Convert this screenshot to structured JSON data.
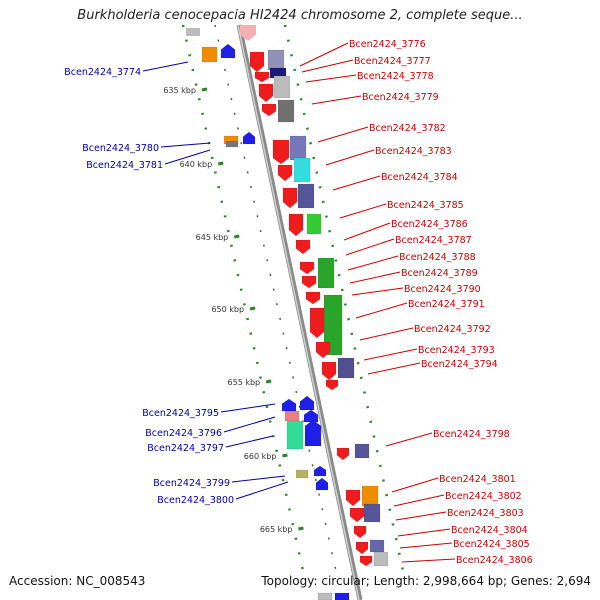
{
  "title": "Burkholderia cenocepacia HI2424 chromosome 2, complete seque...",
  "accession": "Accession: NC_008543",
  "topology": "Topology: circular; Length: 2,998,664 bp; Genes: 2,694",
  "scale_ticks": [
    "635 kbp",
    "640 kbp",
    "645 kbp",
    "650 kbp",
    "655 kbp",
    "660 kbp",
    "665 kbp"
  ],
  "genes_right": [
    "Bcen2424_3776",
    "Bcen2424_3777",
    "Bcen2424_3778",
    "Bcen2424_3779",
    "Bcen2424_3782",
    "Bcen2424_3783",
    "Bcen2424_3784",
    "Bcen2424_3785",
    "Bcen2424_3786",
    "Bcen2424_3787",
    "Bcen2424_3788",
    "Bcen2424_3789",
    "Bcen2424_3790",
    "Bcen2424_3791",
    "Bcen2424_3792",
    "Bcen2424_3793",
    "Bcen2424_3794",
    "Bcen2424_3798",
    "Bcen2424_3801",
    "Bcen2424_3802",
    "Bcen2424_3803",
    "Bcen2424_3804",
    "Bcen2424_3805",
    "Bcen2424_3806"
  ],
  "genes_left": [
    "Bcen2424_3774",
    "Bcen2424_3780",
    "Bcen2424_3781",
    "Bcen2424_3795",
    "Bcen2424_3796",
    "Bcen2424_3797",
    "Bcen2424_3799",
    "Bcen2424_3800"
  ],
  "colors": {
    "forward": "#ee1c1c",
    "reverse": "#1f1fe8",
    "label_right": "#cc0000",
    "label_left": "#0000aa",
    "backbone": "#888888",
    "scale": "#228822"
  }
}
